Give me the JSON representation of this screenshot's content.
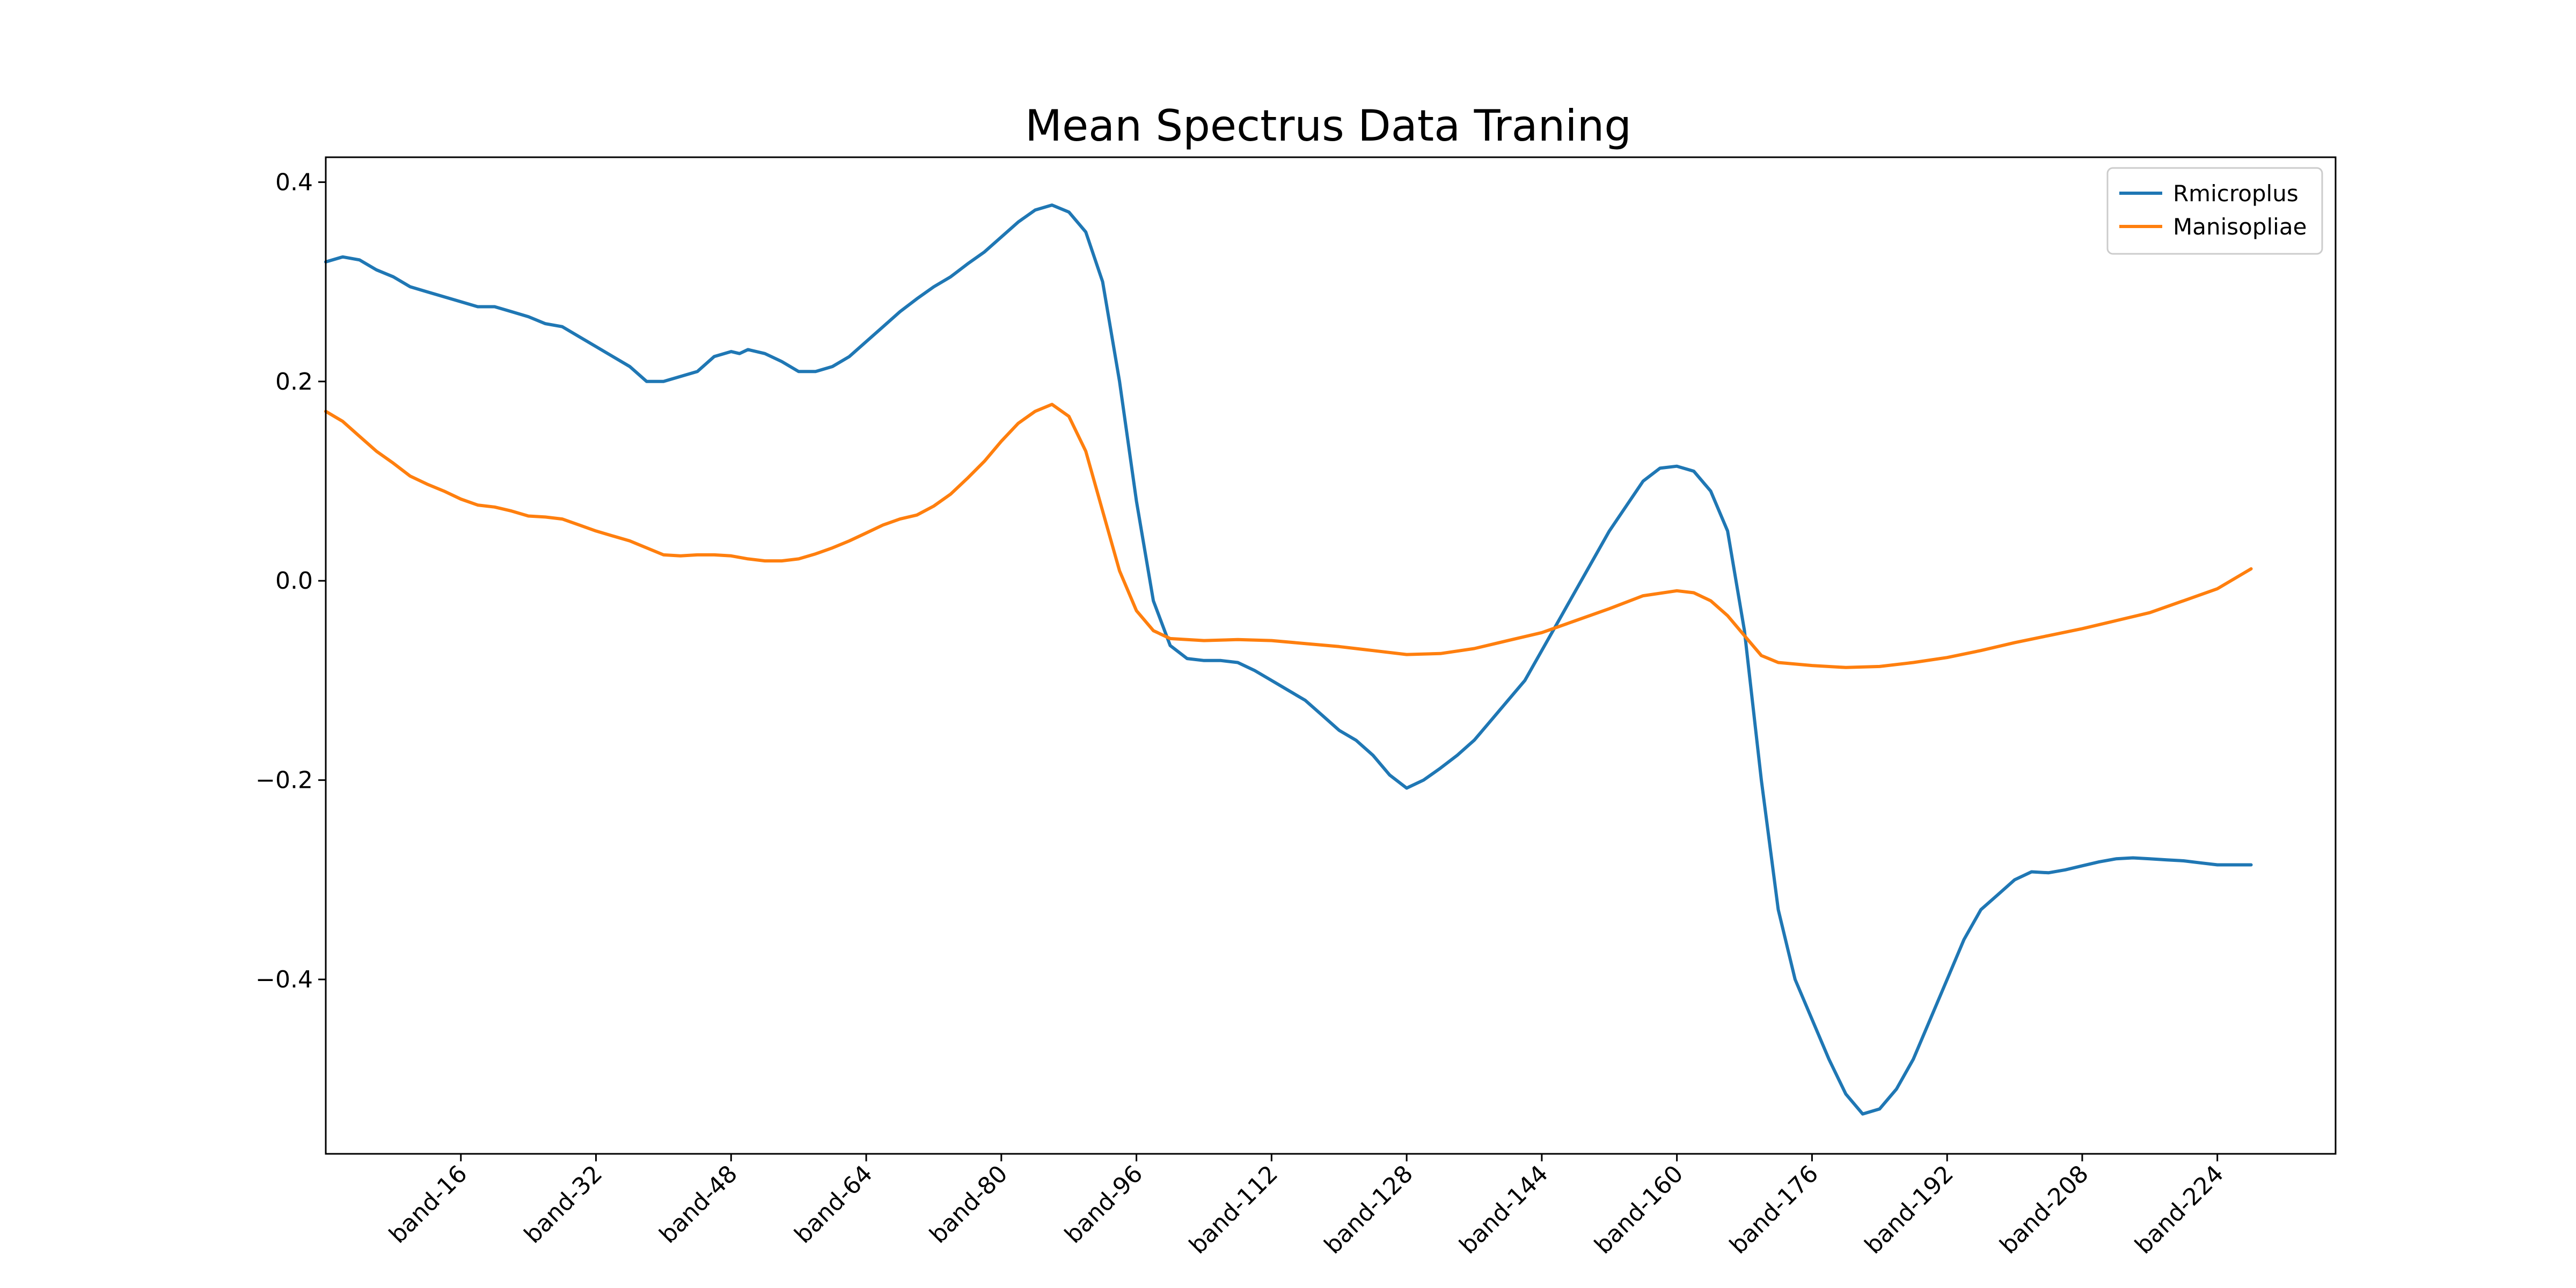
{
  "chart_data": {
    "type": "line",
    "title": "Mean Spectrus Data Traning",
    "xlabel": "",
    "ylabel": "",
    "x_range": [
      0,
      238
    ],
    "ylim": [
      -0.575,
      0.425
    ],
    "x_ticks": [
      {
        "value": 16,
        "label": "band-16"
      },
      {
        "value": 32,
        "label": "band-32"
      },
      {
        "value": 48,
        "label": "band-48"
      },
      {
        "value": 64,
        "label": "band-64"
      },
      {
        "value": 80,
        "label": "band-80"
      },
      {
        "value": 96,
        "label": "band-96"
      },
      {
        "value": 112,
        "label": "band-112"
      },
      {
        "value": 128,
        "label": "band-128"
      },
      {
        "value": 144,
        "label": "band-144"
      },
      {
        "value": 160,
        "label": "band-160"
      },
      {
        "value": 176,
        "label": "band-176"
      },
      {
        "value": 192,
        "label": "band-192"
      },
      {
        "value": 208,
        "label": "band-208"
      },
      {
        "value": 224,
        "label": "band-224"
      }
    ],
    "y_ticks": [
      {
        "value": 0.4,
        "label": "0.4"
      },
      {
        "value": 0.2,
        "label": "0.2"
      },
      {
        "value": 0.0,
        "label": "0.0"
      },
      {
        "value": -0.2,
        "label": "−0.2"
      },
      {
        "value": -0.4,
        "label": "−0.4"
      }
    ],
    "grid": false,
    "legend_position": "top-right",
    "series": [
      {
        "name": "Rmicroplus",
        "color": "#1f77b4",
        "points": [
          [
            0,
            0.32
          ],
          [
            2,
            0.325
          ],
          [
            4,
            0.322
          ],
          [
            6,
            0.312
          ],
          [
            8,
            0.305
          ],
          [
            10,
            0.295
          ],
          [
            12,
            0.29
          ],
          [
            14,
            0.285
          ],
          [
            16,
            0.28
          ],
          [
            18,
            0.275
          ],
          [
            20,
            0.275
          ],
          [
            22,
            0.27
          ],
          [
            24,
            0.265
          ],
          [
            26,
            0.258
          ],
          [
            28,
            0.255
          ],
          [
            30,
            0.245
          ],
          [
            32,
            0.235
          ],
          [
            34,
            0.225
          ],
          [
            36,
            0.215
          ],
          [
            38,
            0.2
          ],
          [
            40,
            0.2
          ],
          [
            42,
            0.205
          ],
          [
            44,
            0.21
          ],
          [
            46,
            0.225
          ],
          [
            48,
            0.23
          ],
          [
            49,
            0.228
          ],
          [
            50,
            0.232
          ],
          [
            52,
            0.228
          ],
          [
            54,
            0.22
          ],
          [
            56,
            0.21
          ],
          [
            58,
            0.21
          ],
          [
            60,
            0.215
          ],
          [
            62,
            0.225
          ],
          [
            64,
            0.24
          ],
          [
            66,
            0.255
          ],
          [
            68,
            0.27
          ],
          [
            70,
            0.283
          ],
          [
            72,
            0.295
          ],
          [
            74,
            0.305
          ],
          [
            76,
            0.318
          ],
          [
            78,
            0.33
          ],
          [
            80,
            0.345
          ],
          [
            82,
            0.36
          ],
          [
            84,
            0.372
          ],
          [
            86,
            0.377
          ],
          [
            88,
            0.37
          ],
          [
            90,
            0.35
          ],
          [
            92,
            0.3
          ],
          [
            94,
            0.2
          ],
          [
            96,
            0.08
          ],
          [
            98,
            -0.02
          ],
          [
            100,
            -0.065
          ],
          [
            102,
            -0.078
          ],
          [
            104,
            -0.08
          ],
          [
            106,
            -0.08
          ],
          [
            108,
            -0.082
          ],
          [
            110,
            -0.09
          ],
          [
            112,
            -0.1
          ],
          [
            114,
            -0.11
          ],
          [
            116,
            -0.12
          ],
          [
            118,
            -0.135
          ],
          [
            120,
            -0.15
          ],
          [
            122,
            -0.16
          ],
          [
            124,
            -0.175
          ],
          [
            126,
            -0.195
          ],
          [
            128,
            -0.208
          ],
          [
            130,
            -0.2
          ],
          [
            132,
            -0.188
          ],
          [
            134,
            -0.175
          ],
          [
            136,
            -0.16
          ],
          [
            138,
            -0.14
          ],
          [
            140,
            -0.12
          ],
          [
            142,
            -0.1
          ],
          [
            144,
            -0.07
          ],
          [
            146,
            -0.04
          ],
          [
            148,
            -0.01
          ],
          [
            150,
            0.02
          ],
          [
            152,
            0.05
          ],
          [
            154,
            0.075
          ],
          [
            156,
            0.1
          ],
          [
            158,
            0.113
          ],
          [
            160,
            0.115
          ],
          [
            162,
            0.11
          ],
          [
            164,
            0.09
          ],
          [
            166,
            0.05
          ],
          [
            168,
            -0.05
          ],
          [
            170,
            -0.2
          ],
          [
            172,
            -0.33
          ],
          [
            174,
            -0.4
          ],
          [
            176,
            -0.44
          ],
          [
            178,
            -0.48
          ],
          [
            180,
            -0.515
          ],
          [
            182,
            -0.535
          ],
          [
            184,
            -0.53
          ],
          [
            186,
            -0.51
          ],
          [
            188,
            -0.48
          ],
          [
            190,
            -0.44
          ],
          [
            192,
            -0.4
          ],
          [
            194,
            -0.36
          ],
          [
            196,
            -0.33
          ],
          [
            198,
            -0.315
          ],
          [
            200,
            -0.3
          ],
          [
            202,
            -0.292
          ],
          [
            204,
            -0.293
          ],
          [
            206,
            -0.29
          ],
          [
            208,
            -0.286
          ],
          [
            210,
            -0.282
          ],
          [
            212,
            -0.279
          ],
          [
            214,
            -0.278
          ],
          [
            216,
            -0.279
          ],
          [
            218,
            -0.28
          ],
          [
            220,
            -0.281
          ],
          [
            222,
            -0.283
          ],
          [
            224,
            -0.285
          ],
          [
            228,
            -0.285
          ]
        ]
      },
      {
        "name": "Manisopliae",
        "color": "#ff7f0e",
        "points": [
          [
            0,
            0.17
          ],
          [
            2,
            0.16
          ],
          [
            4,
            0.145
          ],
          [
            6,
            0.13
          ],
          [
            8,
            0.118
          ],
          [
            10,
            0.105
          ],
          [
            12,
            0.097
          ],
          [
            14,
            0.09
          ],
          [
            16,
            0.082
          ],
          [
            18,
            0.076
          ],
          [
            20,
            0.074
          ],
          [
            22,
            0.07
          ],
          [
            24,
            0.065
          ],
          [
            26,
            0.064
          ],
          [
            28,
            0.062
          ],
          [
            30,
            0.056
          ],
          [
            32,
            0.05
          ],
          [
            34,
            0.045
          ],
          [
            36,
            0.04
          ],
          [
            38,
            0.033
          ],
          [
            40,
            0.026
          ],
          [
            42,
            0.025
          ],
          [
            44,
            0.026
          ],
          [
            46,
            0.026
          ],
          [
            48,
            0.025
          ],
          [
            50,
            0.022
          ],
          [
            52,
            0.02
          ],
          [
            54,
            0.02
          ],
          [
            56,
            0.022
          ],
          [
            58,
            0.027
          ],
          [
            60,
            0.033
          ],
          [
            62,
            0.04
          ],
          [
            64,
            0.048
          ],
          [
            66,
            0.056
          ],
          [
            68,
            0.062
          ],
          [
            70,
            0.066
          ],
          [
            72,
            0.075
          ],
          [
            74,
            0.087
          ],
          [
            76,
            0.103
          ],
          [
            78,
            0.12
          ],
          [
            80,
            0.14
          ],
          [
            82,
            0.158
          ],
          [
            84,
            0.17
          ],
          [
            86,
            0.177
          ],
          [
            88,
            0.165
          ],
          [
            90,
            0.13
          ],
          [
            92,
            0.07
          ],
          [
            94,
            0.01
          ],
          [
            96,
            -0.03
          ],
          [
            98,
            -0.05
          ],
          [
            100,
            -0.058
          ],
          [
            104,
            -0.06
          ],
          [
            108,
            -0.059
          ],
          [
            112,
            -0.06
          ],
          [
            116,
            -0.063
          ],
          [
            120,
            -0.066
          ],
          [
            124,
            -0.07
          ],
          [
            128,
            -0.074
          ],
          [
            132,
            -0.073
          ],
          [
            136,
            -0.068
          ],
          [
            140,
            -0.06
          ],
          [
            144,
            -0.052
          ],
          [
            148,
            -0.04
          ],
          [
            152,
            -0.028
          ],
          [
            156,
            -0.015
          ],
          [
            160,
            -0.01
          ],
          [
            162,
            -0.012
          ],
          [
            164,
            -0.02
          ],
          [
            166,
            -0.035
          ],
          [
            168,
            -0.055
          ],
          [
            170,
            -0.075
          ],
          [
            172,
            -0.082
          ],
          [
            176,
            -0.085
          ],
          [
            180,
            -0.087
          ],
          [
            184,
            -0.086
          ],
          [
            188,
            -0.082
          ],
          [
            192,
            -0.077
          ],
          [
            196,
            -0.07
          ],
          [
            200,
            -0.062
          ],
          [
            204,
            -0.055
          ],
          [
            208,
            -0.048
          ],
          [
            212,
            -0.04
          ],
          [
            216,
            -0.032
          ],
          [
            220,
            -0.02
          ],
          [
            224,
            -0.008
          ],
          [
            228,
            0.012
          ]
        ]
      }
    ]
  }
}
